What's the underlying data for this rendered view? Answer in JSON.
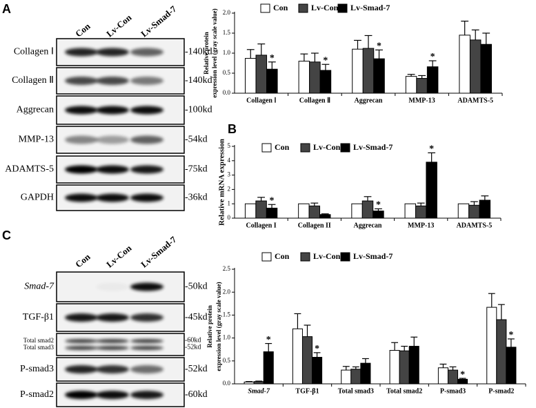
{
  "panels": {
    "a": "A",
    "b": "B",
    "c": "C"
  },
  "blot_a": {
    "lanes": [
      "Con",
      "Lv-Con",
      "Lv-Smad-7"
    ],
    "rows": [
      {
        "label": "Collagen Ⅰ",
        "size": "-140kd"
      },
      {
        "label": "Collagen Ⅱ",
        "size": "-140kd"
      },
      {
        "label": "Aggrecan",
        "size": "-100kd"
      },
      {
        "label": "MMP-13",
        "size": "-54kd"
      },
      {
        "label": "ADAMTS-5",
        "size": "-75kd"
      },
      {
        "label": "GAPDH",
        "size": "-36kd"
      }
    ]
  },
  "blot_c": {
    "lanes": [
      "Con",
      "Lv-Con",
      "Lv-Smad-7"
    ],
    "rows": [
      {
        "label": "Smad-7",
        "size": "-50kd"
      },
      {
        "label": "TGF-β1",
        "size": "-45kd"
      },
      {
        "label": "Total smad2",
        "label2": "Total smad3",
        "size": "-60kd",
        "size2": "-52kd"
      },
      {
        "label": "P-smad3",
        "size": "-52kd"
      },
      {
        "label": "P-smad2",
        "size": "-60kd"
      }
    ]
  },
  "chart_data": [
    {
      "type": "bar",
      "y_label": [
        "Relative protein",
        "expression level (gray scale value)"
      ],
      "categories": [
        "Collagen Ⅰ",
        "Collagen Ⅱ",
        "Aggrecan",
        "MMP-13",
        "ADAMTS-5"
      ],
      "series": [
        {
          "name": "Con",
          "color": "#ffffff",
          "values": [
            0.87,
            0.8,
            1.1,
            0.42,
            1.45
          ],
          "errors": [
            0.22,
            0.18,
            0.22,
            0.05,
            0.35
          ]
        },
        {
          "name": "Lv-Con",
          "color": "#444444",
          "values": [
            0.95,
            0.78,
            1.12,
            0.37,
            1.33
          ],
          "errors": [
            0.28,
            0.22,
            0.32,
            0.07,
            0.25
          ]
        },
        {
          "name": "Lv-Smad-7",
          "color": "#000000",
          "values": [
            0.6,
            0.57,
            0.86,
            0.66,
            1.22
          ],
          "errors": [
            0.18,
            0.15,
            0.22,
            0.15,
            0.28
          ]
        }
      ],
      "ylim": [
        0,
        2
      ],
      "yticks": [
        {
          "value": 0,
          "label": "0.0"
        },
        0.5,
        {
          "value": 1,
          "label": "1.0"
        },
        1.5,
        {
          "value": 2,
          "label": "2.0"
        }
      ],
      "annotations": [
        {
          "text": "*",
          "category": "Collagen Ⅰ",
          "series": "Lv-Smad-7"
        },
        {
          "text": "*",
          "category": "Collagen Ⅱ",
          "series": "Lv-Smad-7"
        },
        {
          "text": "*",
          "category": "Aggrecan",
          "series": "Lv-Smad-7"
        },
        {
          "text": "*",
          "category": "MMP-13",
          "series": "Lv-Smad-7"
        }
      ]
    },
    {
      "type": "bar",
      "y_label": [
        "Relative mRNA expression"
      ],
      "categories": [
        "Collagen I",
        "Collagen II",
        "Aggrecan",
        "MMP-13",
        "ADAMTS-5"
      ],
      "series": [
        {
          "name": "Con",
          "color": "#ffffff",
          "values": [
            1,
            1,
            1,
            1,
            1
          ],
          "errors": [
            0,
            0,
            0,
            0,
            0
          ]
        },
        {
          "name": "Lv-Con",
          "color": "#444444",
          "values": [
            1.2,
            0.85,
            1.2,
            0.85,
            0.9
          ],
          "errors": [
            0.25,
            0.2,
            0.3,
            0.2,
            0.25
          ]
        },
        {
          "name": "Lv-Smad-7",
          "color": "#000000",
          "values": [
            0.7,
            0.25,
            0.5,
            3.9,
            1.25
          ],
          "errors": [
            0.25,
            0.05,
            0.15,
            0.65,
            0.3
          ]
        }
      ],
      "ylim": [
        0,
        5
      ],
      "yticks": [
        0,
        1,
        2,
        3,
        4,
        5
      ],
      "annotations": [
        {
          "text": "*",
          "category": "Collagen I",
          "series": "Lv-Smad-7"
        },
        {
          "text": "*",
          "category": "Aggrecan",
          "series": "Lv-Smad-7"
        },
        {
          "text": "*",
          "category": "MMP-13",
          "series": "Lv-Smad-7"
        }
      ]
    },
    {
      "type": "bar",
      "y_label": [
        "Relative protein",
        "expression level (gray scale value)"
      ],
      "categories": [
        "Smad-7",
        "TGF-β1",
        "Total smad3",
        "Total smad2",
        "P-smad3",
        "P-smad2"
      ],
      "series": [
        {
          "name": "Con",
          "color": "#ffffff",
          "values": [
            0.04,
            1.2,
            0.3,
            0.73,
            0.35,
            1.67
          ],
          "errors": [
            0.01,
            0.33,
            0.08,
            0.17,
            0.08,
            0.3
          ]
        },
        {
          "name": "Lv-Con",
          "color": "#444444",
          "values": [
            0.05,
            1.03,
            0.32,
            0.72,
            0.3,
            1.4
          ],
          "errors": [
            0.01,
            0.25,
            0.05,
            0.1,
            0.07,
            0.33
          ]
        },
        {
          "name": "Lv-Smad-7",
          "color": "#000000",
          "values": [
            0.7,
            0.58,
            0.45,
            0.82,
            0.1,
            0.8
          ],
          "errors": [
            0.18,
            0.1,
            0.1,
            0.2,
            0.02,
            0.18
          ]
        }
      ],
      "ylim": [
        0,
        2.5
      ],
      "yticks": [
        {
          "value": 0,
          "label": "0.0"
        },
        0.5,
        {
          "value": 1,
          "label": "1.0"
        },
        1.5,
        {
          "value": 2,
          "label": "2.0"
        },
        2.5
      ],
      "annotations": [
        {
          "text": "*",
          "category": "Smad-7",
          "series": "Lv-Smad-7"
        },
        {
          "text": "*",
          "category": "TGF-β1",
          "series": "Lv-Smad-7"
        },
        {
          "text": "*",
          "category": "P-smad3",
          "series": "Lv-Smad-7"
        },
        {
          "text": "*",
          "category": "P-smad2",
          "series": "Lv-Smad-7"
        }
      ]
    }
  ]
}
